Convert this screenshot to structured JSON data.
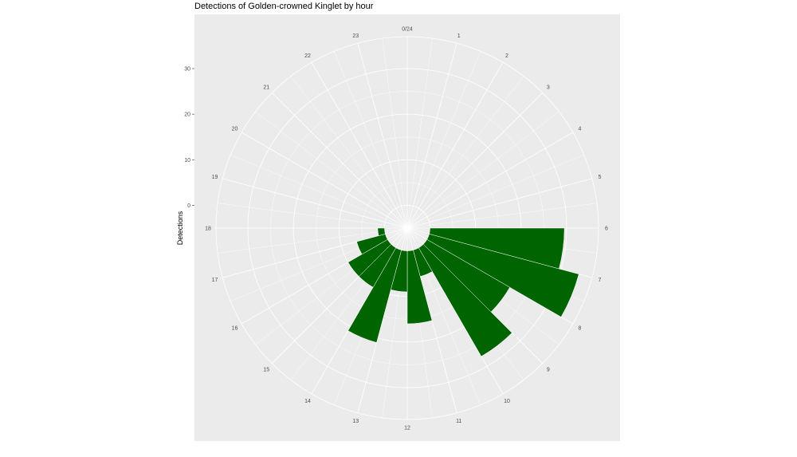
{
  "chart_data": {
    "type": "bar",
    "coord": "polar",
    "title": "Detections of Golden-crowned Kinglet by hour",
    "ylabel": "Detections",
    "xlabel": "",
    "y_ticks": [
      0,
      10,
      20,
      30
    ],
    "ylim": [
      -5,
      37
    ],
    "x_tick_labels": [
      "0/24",
      "1",
      "2",
      "3",
      "4",
      "5",
      "6",
      "7",
      "8",
      "9",
      "10",
      "11",
      "12",
      "13",
      "14",
      "15",
      "16",
      "17",
      "18",
      "19",
      "20",
      "21",
      "22",
      "23"
    ],
    "categories": [
      0,
      1,
      2,
      3,
      4,
      5,
      6,
      7,
      8,
      9,
      10,
      11,
      12,
      13,
      14,
      15,
      16,
      17,
      18,
      19,
      20,
      21,
      22,
      23
    ],
    "values": [
      0,
      0,
      0,
      0,
      0,
      0,
      29.5,
      34,
      21,
      27.5,
      6,
      16,
      9,
      21,
      10,
      10,
      6.5,
      1.5,
      0,
      0,
      0,
      0,
      0,
      0
    ],
    "grid": true,
    "colors": {
      "bar": "#006400",
      "panel": "#ebebeb",
      "grid": "#ffffff"
    }
  }
}
